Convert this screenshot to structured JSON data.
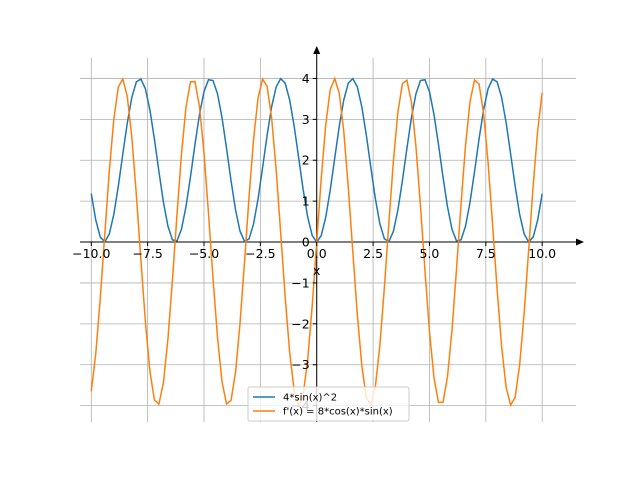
{
  "chart_data": {
    "type": "line",
    "title": "",
    "xlabel": "x",
    "ylabel": "",
    "xlim": [
      -10.5,
      11.5
    ],
    "ylim": [
      -4.4,
      4.5
    ],
    "grid": true,
    "legend_position": "bottom-center",
    "x_ticks": [
      -10.0,
      -7.5,
      -5.0,
      -2.5,
      0.0,
      2.5,
      5.0,
      7.5,
      10.0
    ],
    "x_tick_labels": [
      "−10.0",
      "−7.5",
      "−5.0",
      "−2.5",
      "0.0",
      "2.5",
      "5.0",
      "7.5",
      "10.0"
    ],
    "y_ticks": [
      -4,
      -3,
      -2,
      -1,
      0,
      1,
      2,
      3,
      4
    ],
    "y_tick_labels": [
      "−4",
      "−3",
      "−2",
      "−1",
      "0",
      "1",
      "2",
      "3",
      "4"
    ],
    "x_range": [
      -10,
      10
    ],
    "series": [
      {
        "name": "4*sin(x)^2",
        "expression": "4*sin(x)^2",
        "color": "#1f77b4"
      },
      {
        "name": "f'(x) = 8*cos(x)*sin(x)",
        "expression": "8*cos(x)*sin(x)",
        "color": "#ff7f0e"
      }
    ]
  }
}
